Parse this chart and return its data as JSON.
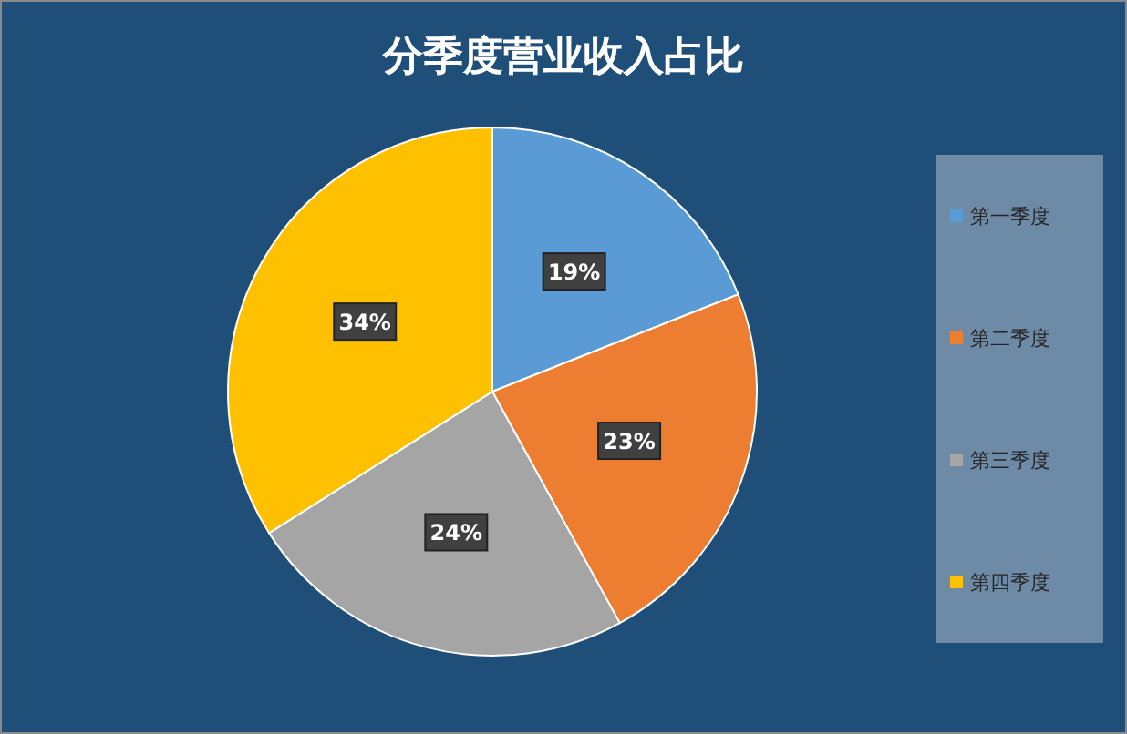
{
  "chart_data": {
    "type": "pie",
    "title": "分季度营业收入占比",
    "categories": [
      "第一季度",
      "第二季度",
      "第三季度",
      "第四季度"
    ],
    "values": [
      19,
      23,
      24,
      34
    ],
    "colors": [
      "#5b9bd5",
      "#ed7d31",
      "#a5a5a5",
      "#ffc000"
    ],
    "value_labels": [
      "19%",
      "23%",
      "24%",
      "34%"
    ],
    "legend": "right"
  }
}
